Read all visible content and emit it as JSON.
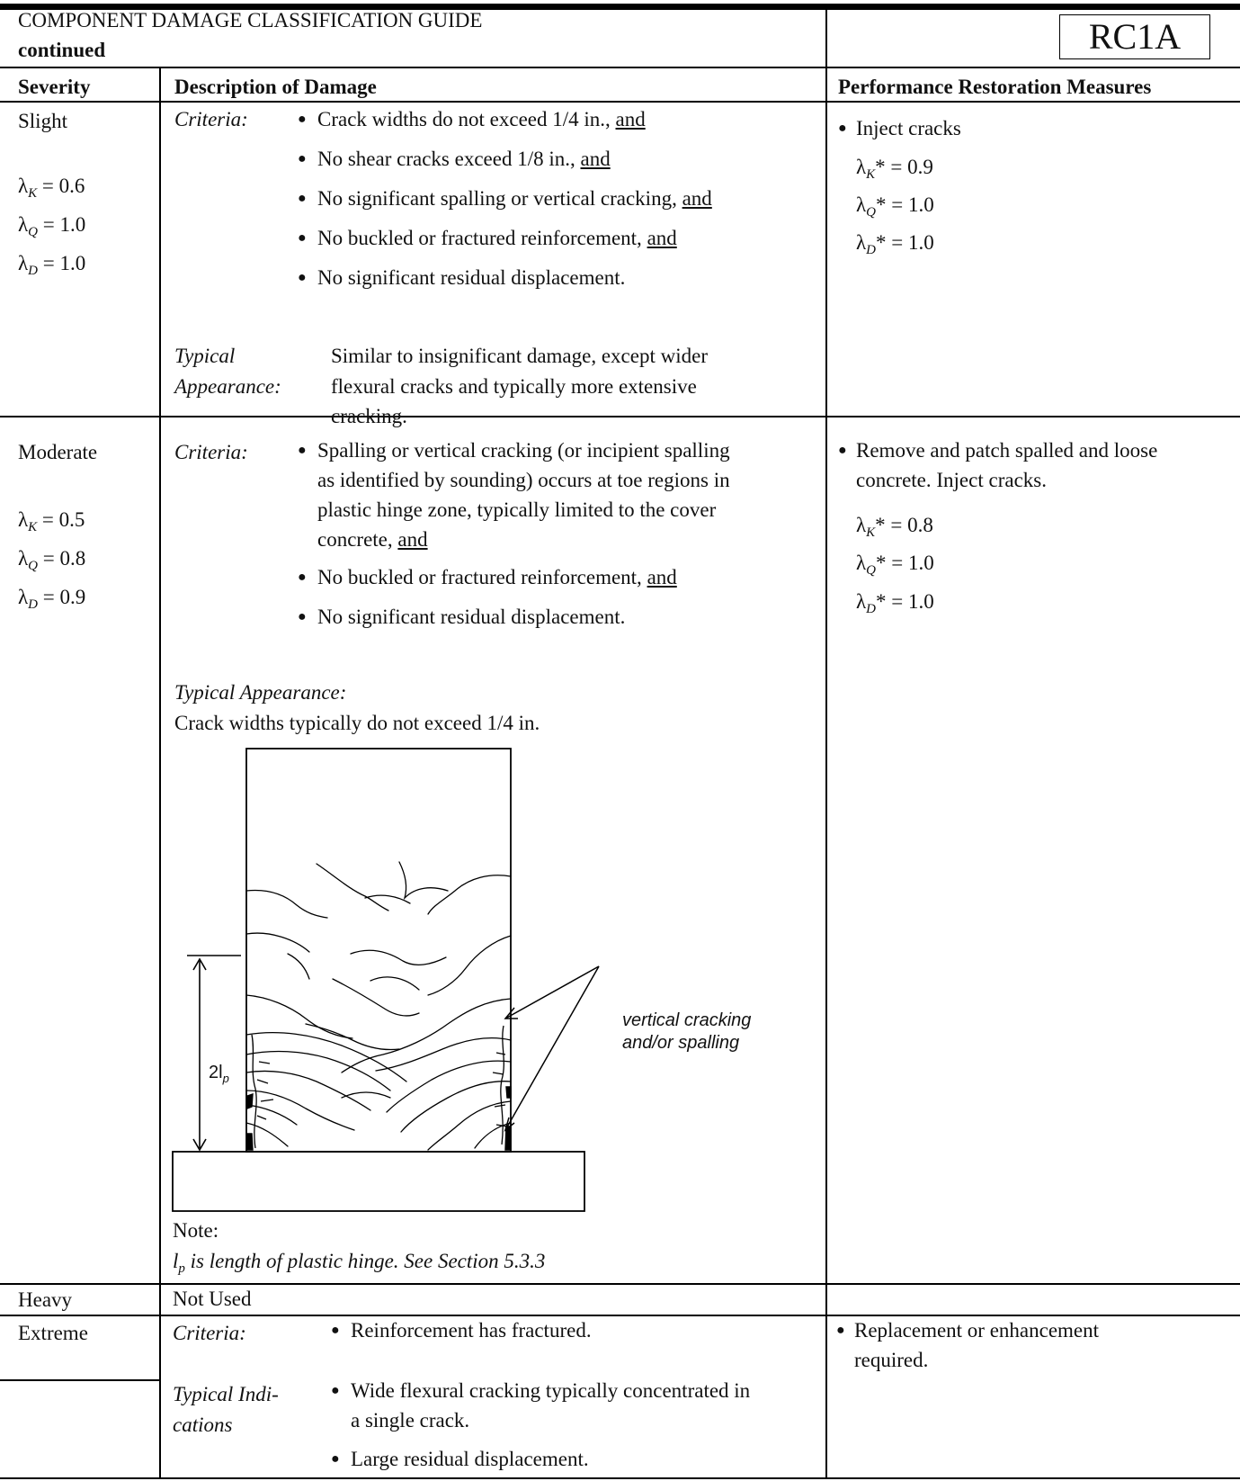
{
  "header": {
    "title": "COMPONENT DAMAGE CLASSIFICATION GUIDE",
    "subtitle": "continued",
    "code": "RC1A"
  },
  "columns": {
    "severity": "Severity",
    "description": "Description of Damage",
    "restoration": "Performance Restoration Measures"
  },
  "labels": {
    "criteria": "Criteria:",
    "typical_1": "Typical",
    "typical_2": "Appearance:",
    "typical_appearance": "Typical Appearance:",
    "typical_ind_1": "Typical Indi-",
    "typical_ind_2": "cations"
  },
  "slight": {
    "severity": "Slight",
    "factors": [
      {
        "sym": "K",
        "text": " = 0.6"
      },
      {
        "sym": "Q",
        "text": " = 1.0"
      },
      {
        "sym": "D",
        "text": " = 1.0"
      }
    ],
    "criteria": [
      {
        "text": "Crack widths do not exceed 1/4 in., ",
        "and": "and"
      },
      {
        "text": "No shear cracks exceed 1/8 in., ",
        "and": "and"
      },
      {
        "text": "No significant spalling or vertical cracking, ",
        "and": "and"
      },
      {
        "text": "No buckled or fractured reinforcement, ",
        "and": "and"
      },
      {
        "text": "No significant residual displacement.",
        "and": ""
      }
    ],
    "typical_lines": [
      "Similar to insignificant damage, except wider",
      "flexural cracks and typically more extensive",
      "cracking."
    ],
    "restoration": [
      "Inject cracks"
    ],
    "rfactors": [
      {
        "sym": "K",
        "text": "* = 0.9"
      },
      {
        "sym": "Q",
        "text": "* = 1.0"
      },
      {
        "sym": "D",
        "text": "* = 1.0"
      }
    ]
  },
  "moderate": {
    "severity": "Moderate",
    "factors": [
      {
        "sym": "K",
        "text": " = 0.5"
      },
      {
        "sym": "Q",
        "text": " = 0.8"
      },
      {
        "sym": "D",
        "text": " = 0.9"
      }
    ],
    "criteria1_lines": [
      "Spalling or vertical cracking (or incipient spalling",
      "as identified by sounding) occurs at toe regions in",
      "plastic hinge zone, typically limited to the cover",
      "concrete, "
    ],
    "criteria1_and": "and",
    "criteria": [
      {
        "text": "No buckled or fractured reinforcement, ",
        "and": "and"
      },
      {
        "text": "No significant residual displacement.",
        "and": ""
      }
    ],
    "typical_text": "Crack widths typically do not exceed 1/4 in.",
    "figure": {
      "hinge_label": "2l",
      "hinge_sub": "p",
      "annotation": [
        "vertical cracking",
        "and/or spalling"
      ]
    },
    "note_label": "Note:",
    "note_sym": "l",
    "note_sub": "p",
    "note_text": " is length of plastic hinge. See Section 5.3.3",
    "restoration": [
      "Remove and patch spalled and loose",
      "concrete. Inject cracks."
    ],
    "rfactors": [
      {
        "sym": "K",
        "text": "* = 0.8"
      },
      {
        "sym": "Q",
        "text": "* = 1.0"
      },
      {
        "sym": "D",
        "text": "* = 1.0"
      }
    ]
  },
  "heavy": {
    "severity": "Heavy",
    "description": "Not Used"
  },
  "extreme": {
    "severity": "Extreme",
    "criteria": [
      "Reinforcement has fractured."
    ],
    "indications": [
      [
        "Wide flexural cracking typically concentrated in",
        "a single crack."
      ],
      [
        "Large residual displacement."
      ]
    ],
    "restoration": [
      "Replacement or enhancement",
      "required."
    ]
  }
}
